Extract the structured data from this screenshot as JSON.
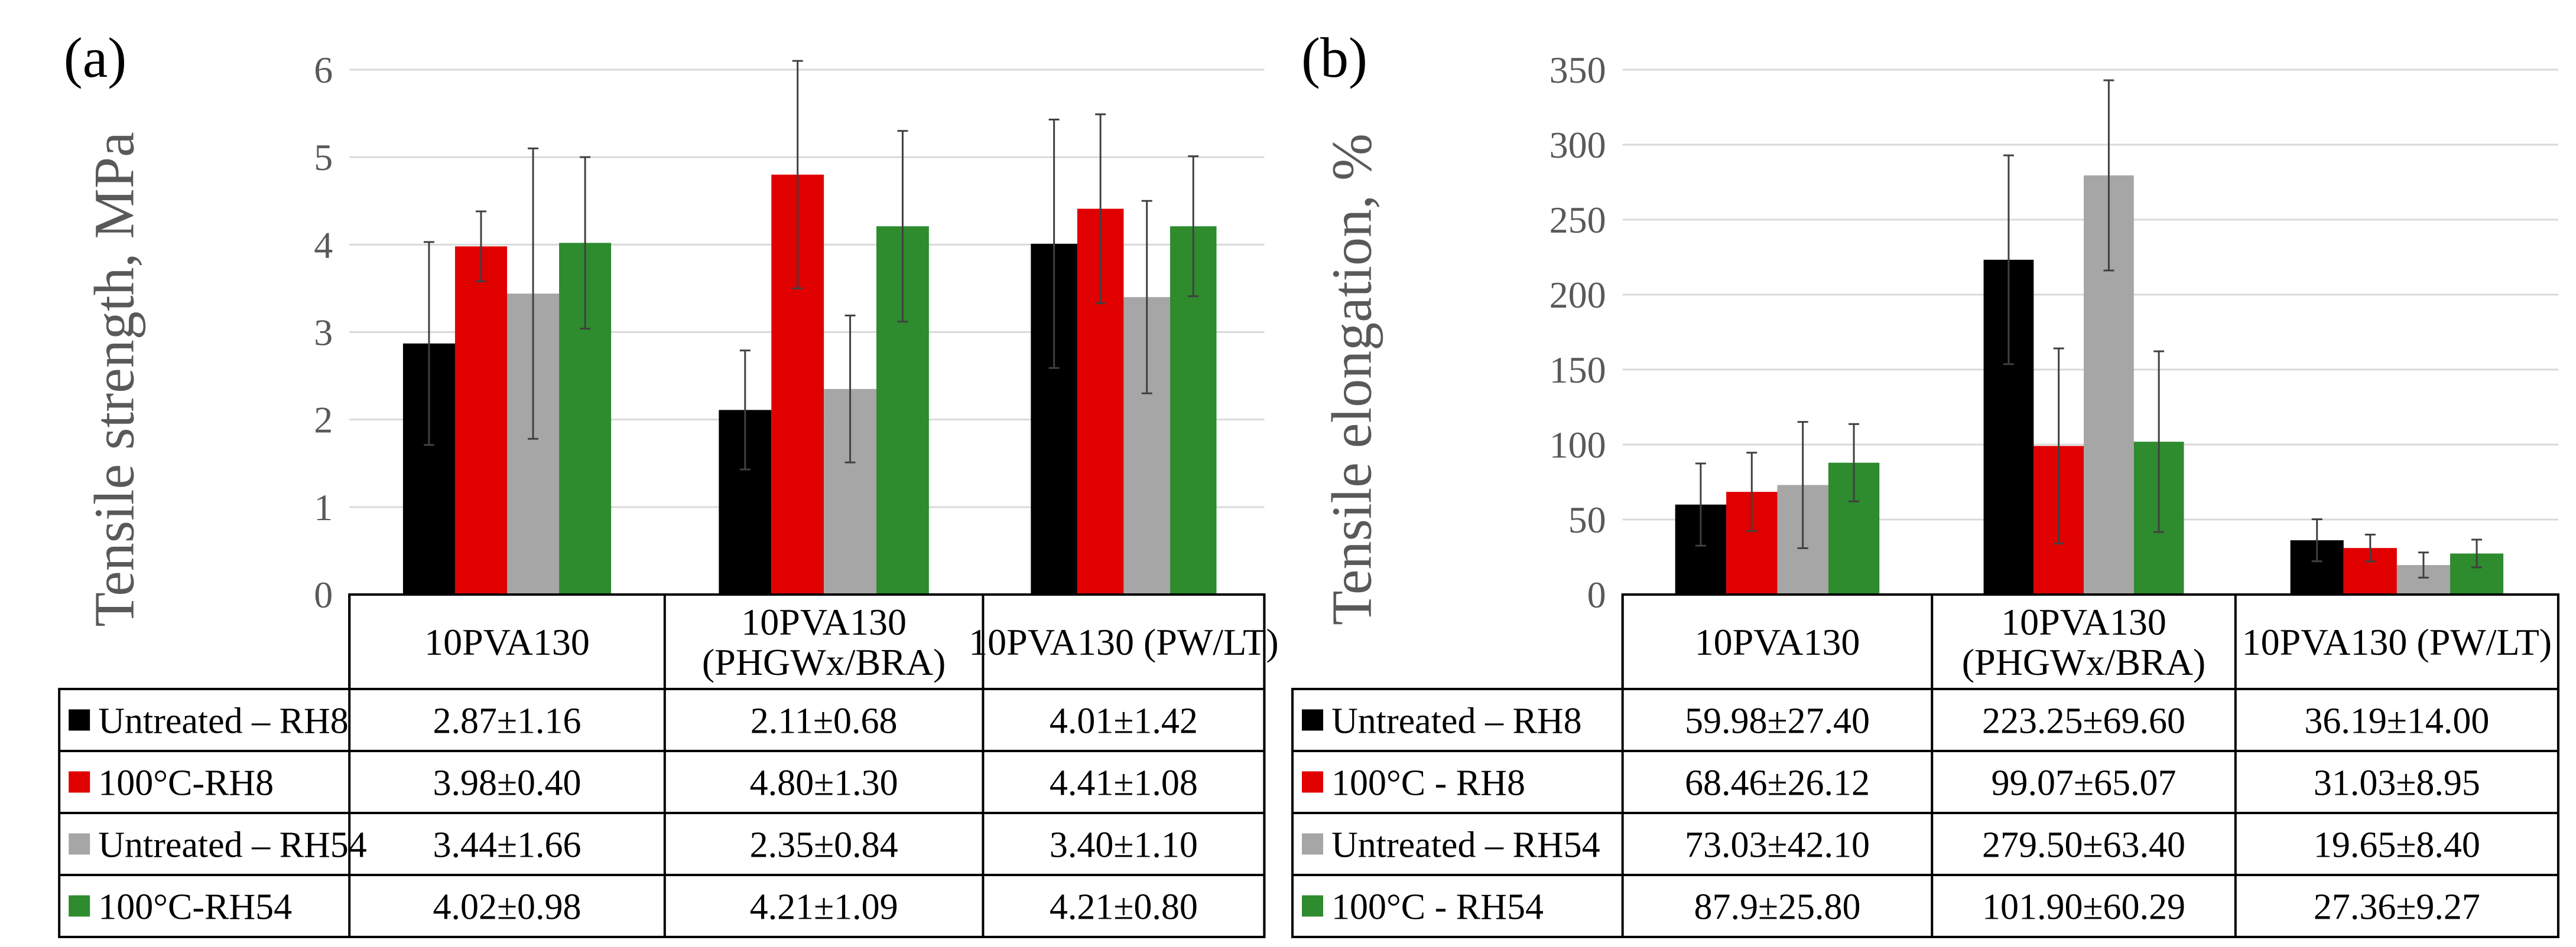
{
  "chart_data": [
    {
      "type": "bar",
      "panel_label": "(a)",
      "ylabel": "Tensile strength, MPa",
      "ylim": [
        0,
        6
      ],
      "yticks": [
        "0",
        "1",
        "2",
        "3",
        "4",
        "5",
        "6"
      ],
      "categories": [
        "10PVA130",
        "10PVA130\n(PHGWx/BRA)",
        "10PVA130  (PW/LT)"
      ],
      "series": [
        {
          "name": "Untreated  – RH8",
          "color": "#000000",
          "values": [
            2.87,
            2.11,
            4.01
          ],
          "errors": [
            1.16,
            0.68,
            1.42
          ],
          "cells": [
            "2.87±1.16",
            "2.11±0.68",
            "4.01±1.42"
          ]
        },
        {
          "name": "100°C-RH8",
          "color": "#e00000",
          "values": [
            3.98,
            4.8,
            4.41
          ],
          "errors": [
            0.4,
            1.3,
            1.08
          ],
          "cells": [
            "3.98±0.40",
            "4.80±1.30",
            "4.41±1.08"
          ]
        },
        {
          "name": "Untreated  – RH54",
          "color": "#a6a6a6",
          "values": [
            3.44,
            2.35,
            3.4
          ],
          "errors": [
            1.66,
            0.84,
            1.1
          ],
          "cells": [
            "3.44±1.66",
            "2.35±0.84",
            "3.40±1.10"
          ]
        },
        {
          "name": "100°C-RH54",
          "color": "#2e8b2e",
          "values": [
            4.02,
            4.21,
            4.21
          ],
          "errors": [
            0.98,
            1.09,
            0.8
          ],
          "cells": [
            "4.02±0.98",
            "4.21±1.09",
            "4.21±0.80"
          ]
        }
      ],
      "grid": true,
      "legend": "data table below chart"
    },
    {
      "type": "bar",
      "panel_label": "(b)",
      "ylabel": "Tensile elongation, %",
      "ylim": [
        0,
        350
      ],
      "yticks": [
        "0",
        "50",
        "100",
        "150",
        "200",
        "250",
        "300",
        "350"
      ],
      "categories": [
        "10PVA130",
        "10PVA130\n(PHGWx/BRA)",
        "10PVA130  (PW/LT)"
      ],
      "series": [
        {
          "name": "Untreated  – RH8",
          "color": "#000000",
          "values": [
            59.98,
            223.25,
            36.19
          ],
          "errors": [
            27.4,
            69.6,
            14.0
          ],
          "cells": [
            "59.98±27.40",
            "223.25±69.60",
            "36.19±14.00"
          ]
        },
        {
          "name": "100°C - RH8",
          "color": "#e00000",
          "values": [
            68.46,
            99.07,
            31.03
          ],
          "errors": [
            26.12,
            65.07,
            8.95
          ],
          "cells": [
            "68.46±26.12",
            "99.07±65.07",
            "31.03±8.95"
          ]
        },
        {
          "name": "Untreated  – RH54",
          "color": "#a6a6a6",
          "values": [
            73.03,
            279.5,
            19.65
          ],
          "errors": [
            42.1,
            63.4,
            8.4
          ],
          "cells": [
            "73.03±42.10",
            "279.50±63.40",
            "19.65±8.40"
          ]
        },
        {
          "name": "100°C - RH54",
          "color": "#2e8b2e",
          "values": [
            87.9,
            101.9,
            27.36
          ],
          "errors": [
            25.8,
            60.29,
            9.27
          ],
          "cells": [
            "87.9±25.80",
            "101.90±60.29",
            "27.36±9.27"
          ]
        }
      ],
      "grid": true,
      "legend": "data table below chart"
    }
  ]
}
